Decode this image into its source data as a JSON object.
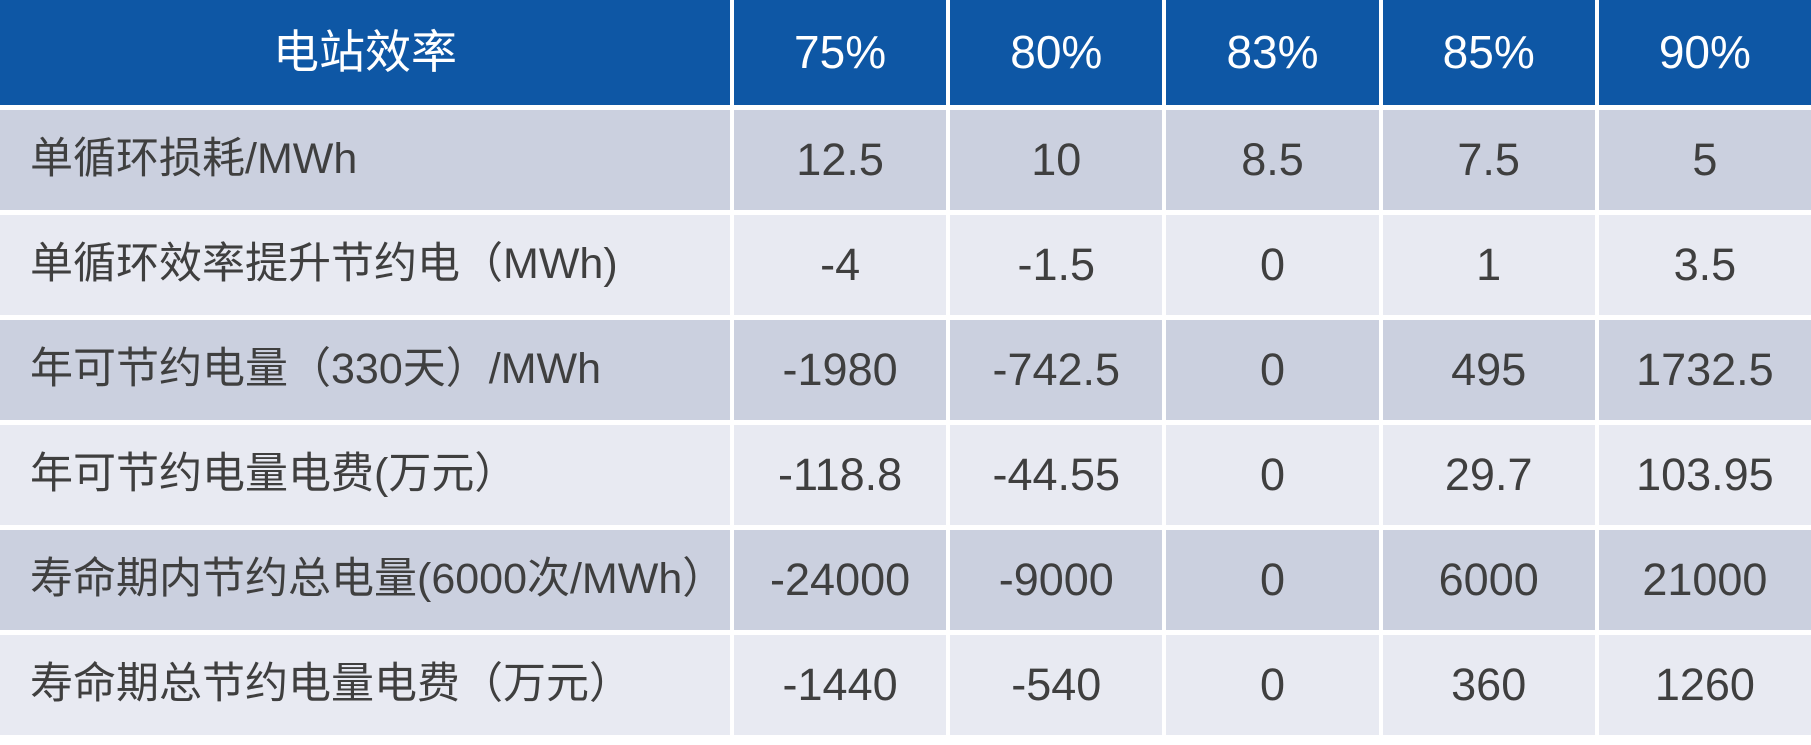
{
  "chart_data": {
    "type": "table",
    "title": "电站效率",
    "header": [
      "电站效率",
      "75%",
      "80%",
      "83%",
      "85%",
      "90%"
    ],
    "rows": [
      [
        "单循环损耗/MWh",
        "12.5",
        "10",
        "8.5",
        "7.5",
        "5"
      ],
      [
        "单循环效率提升节约电（MWh)",
        "-4",
        "-1.5",
        "0",
        "1",
        "3.5"
      ],
      [
        "年可节约电量（330天）/MWh",
        "-1980",
        "-742.5",
        "0",
        "495",
        "1732.5"
      ],
      [
        "年可节约电量电费(万元）",
        "-118.8",
        "-44.55",
        "0",
        "29.7",
        "103.95"
      ],
      [
        "寿命期内节约总电量(6000次/MWh）",
        "-24000",
        "-9000",
        "0",
        "6000",
        "21000"
      ],
      [
        "寿命期总节约电量电费（万元）",
        "-1440",
        "-540",
        "0",
        "360",
        "1260"
      ]
    ],
    "layout": {
      "first_column_align": "left",
      "value_columns_align": "center",
      "grid": "white gutters between all cells",
      "row_striping": "odd rows darker, even rows lighter"
    }
  },
  "colors": {
    "header_bg": "#0e57a5",
    "header_text": "#ffffff",
    "row_odd_bg": "#cbd0df",
    "row_even_bg": "#e8eaf2",
    "body_text": "#3f3f3f",
    "divider": "#ffffff"
  }
}
